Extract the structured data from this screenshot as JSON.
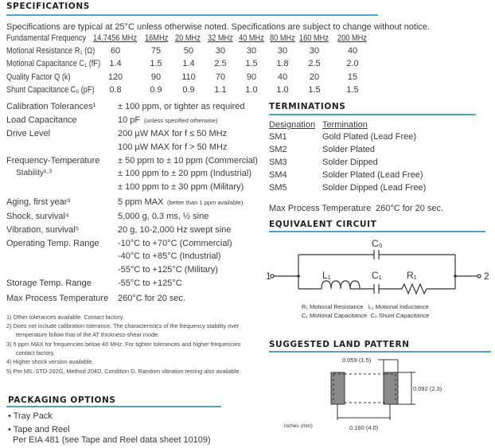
{
  "specs": {
    "heading": "SPECIFICATIONS",
    "intro": "Specifications are typical at 25°C unless otherwise noted. Specifications are subject to change without notice.",
    "table": {
      "header_label": "Fundamental Frequency",
      "frequencies": [
        "14.7456 MHz",
        "16MHz",
        "20 MHz",
        "32 MHz",
        "40 MHz",
        "80 MHz",
        "160 MHz",
        "200 MHz"
      ],
      "rows": [
        {
          "label": "Motional Resistance R₁ (Ω)",
          "values": [
            "60",
            "75",
            "50",
            "30",
            "30",
            "30",
            "30",
            "40"
          ]
        },
        {
          "label": "Motional Capacitance C₁ (fF)",
          "values": [
            "1.4",
            "1.5",
            "1.4",
            "2.5",
            "1.5",
            "1.8",
            "2.5",
            "2.0"
          ]
        },
        {
          "label": "Quality Factor Q (k)",
          "values": [
            "120",
            "90",
            "110",
            "70",
            "90",
            "40",
            "20",
            "15"
          ]
        },
        {
          "label": "Shunt Capacitance C₀ (pF)",
          "values": [
            "0.8",
            "0.9",
            "0.9",
            "1.1",
            "1.0",
            "1.0",
            "1.5",
            "1.5"
          ]
        }
      ]
    },
    "params": [
      {
        "label": "Calibration Tolerances¹",
        "value": "± 100 ppm, or tighter as required"
      },
      {
        "label": "Load Capacitance",
        "value": "10 pF",
        "note": "(unless specified otherwise)"
      },
      {
        "label": "Drive Level",
        "value": "200 µW MAX for f ≤ 50 MHz"
      },
      {
        "label": "",
        "value": "100 µW MAX for f > 50 MHz"
      },
      {
        "label": "Frequency-Temperature",
        "value": "± 50 ppm  to ± 10 ppm (Commercial)"
      },
      {
        "label": "Stability¹·³",
        "value": "± 100 ppm to ± 20 ppm (Industrial)"
      },
      {
        "label": "",
        "value": "± 100 ppm to ± 30 ppm (Military)"
      },
      {
        "label": "Aging, first year³",
        "value": "5 ppm MAX",
        "note": "(better than 1 ppm available)"
      },
      {
        "label": "Shock, survival⁴",
        "value": "5,000 g, 0.3 ms, ½ sine"
      },
      {
        "label": "Vibration, survival⁵",
        "value": "20 g, 10-2,000 Hz swept sine"
      },
      {
        "label": "Operating Temp. Range",
        "value": "-10°C to +70°C   (Commercial)"
      },
      {
        "label": "",
        "value": "-40°C to +85°C   (Industrial)"
      },
      {
        "label": "",
        "value": "-55°C to +125°C (Military)"
      },
      {
        "label": "Storage Temp. Range",
        "value": "-55°C to +125°C"
      },
      {
        "label": "Max Process Temperature",
        "value": "260°C for 20 sec."
      }
    ],
    "footnotes": [
      "1) Other tolerances available.  Contact factory.",
      "2) Does not include calibration tolerance.  The characteristics of the frequency stability over",
      "temperature follow that of the AT thickness-shear mode.",
      "3) 5 ppm MAX for frequencies below 40 MHz.  For tighter tolerances and higher frequencies",
      "contact factory.",
      "4) Higher shock version available.",
      "5) Per MIL-STD-202G, Method 204D, Condition D.  Random vibration testing also available."
    ]
  },
  "packaging": {
    "heading": "PACKAGING OPTIONS",
    "items": [
      "• Tray Pack",
      "• Tape and Reel"
    ],
    "sub": "Per EIA 481 (see Tape and Reel data sheet 10109)"
  },
  "terminations": {
    "heading": "TERMINATIONS",
    "col1": "Designation",
    "col2": "Termination",
    "rows": [
      {
        "d": "SM1",
        "t": "Gold Plated (Lead Free)"
      },
      {
        "d": "SM2",
        "t": "Solder Plated"
      },
      {
        "d": "SM3",
        "t": "Solder Dipped"
      },
      {
        "d": "SM4",
        "t": "Solder Plated (Lead Free)"
      },
      {
        "d": "SM5",
        "t": "Solder Dipped (Lead Free)"
      }
    ],
    "max_label": "Max Process Temperature",
    "max_value": "260°C for 20 sec."
  },
  "circuit": {
    "heading": "EQUIVALENT CIRCUIT",
    "c0": "C₀",
    "l1": "L₁",
    "c1": "C₁",
    "r1": "R₁",
    "t1": "1",
    "t2": "2",
    "legend1": "R₁ Motional Resistance   L₁ Motional Inductance",
    "legend2": "C₁ Motional Capacitance  C₀ Shunt Capacitance"
  },
  "land": {
    "heading": "SUGGESTED LAND PATTERN",
    "dim_width": "0.059 (1.5)",
    "dim_height": "0.092 (2.3)",
    "dim_span": "0.160 (4.0)",
    "units": "inches (mm)"
  },
  "colors": {
    "rule": "#4aa3c8",
    "pad": "#8a8a8a"
  }
}
